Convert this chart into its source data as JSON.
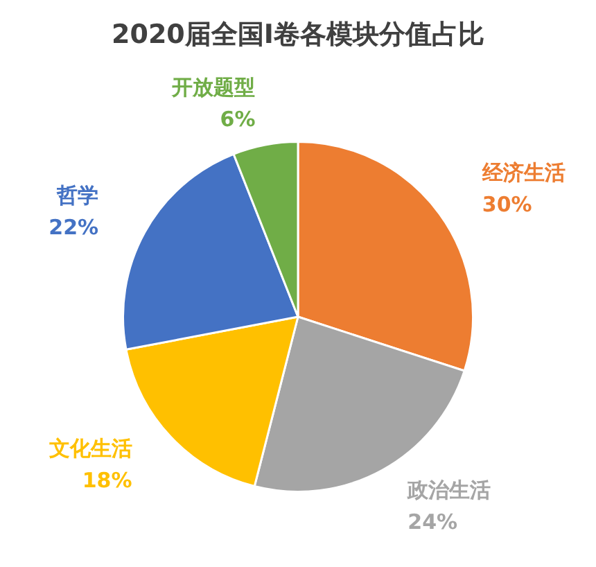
{
  "chart_data": {
    "type": "pie",
    "title": "2020届全国I卷各模块分值占比",
    "categories": [
      "经济生活",
      "政治生活",
      "文化生活",
      "哲学",
      "开放题型"
    ],
    "values": [
      30,
      24,
      18,
      22,
      6
    ],
    "value_labels": [
      "30%",
      "24%",
      "18%",
      "22%",
      "6%"
    ],
    "colors": [
      "#ed7d31",
      "#a5a5a5",
      "#ffc000",
      "#4472c4",
      "#70ad47"
    ],
    "legend": false
  }
}
